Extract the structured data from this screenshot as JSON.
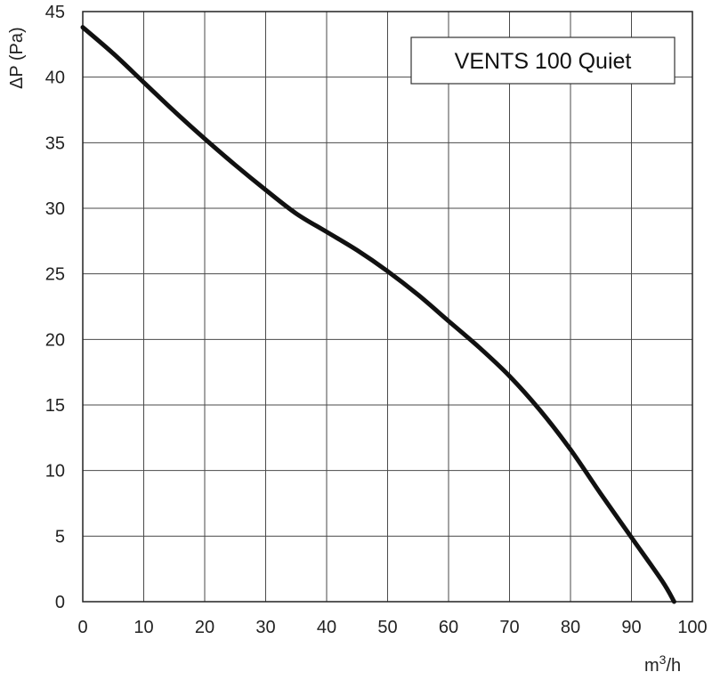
{
  "chart_data": {
    "type": "line",
    "title": "",
    "xlabel": {
      "base": "m",
      "sup": "3",
      "rest": "/h"
    },
    "ylabel": "ΔP (Pa)",
    "xlim": [
      0,
      100
    ],
    "ylim": [
      0,
      45
    ],
    "x_ticks": [
      0,
      10,
      20,
      30,
      40,
      50,
      60,
      70,
      80,
      90,
      100
    ],
    "y_ticks": [
      0,
      5,
      10,
      15,
      20,
      25,
      30,
      35,
      40,
      45
    ],
    "grid": true,
    "legend": {
      "position": "top-right",
      "label": "VENTS 100 Quiet"
    },
    "series": [
      {
        "name": "VENTS 100 Quiet",
        "color": "#111111",
        "x": [
          0,
          5,
          10,
          15,
          20,
          25,
          30,
          35,
          40,
          45,
          50,
          55,
          60,
          65,
          70,
          75,
          80,
          85,
          90,
          95,
          97
        ],
        "y": [
          43.8,
          41.8,
          39.6,
          37.4,
          35.3,
          33.3,
          31.4,
          29.6,
          28.2,
          26.8,
          25.2,
          23.4,
          21.4,
          19.4,
          17.2,
          14.6,
          11.6,
          8.2,
          4.9,
          1.6,
          0
        ]
      }
    ]
  }
}
